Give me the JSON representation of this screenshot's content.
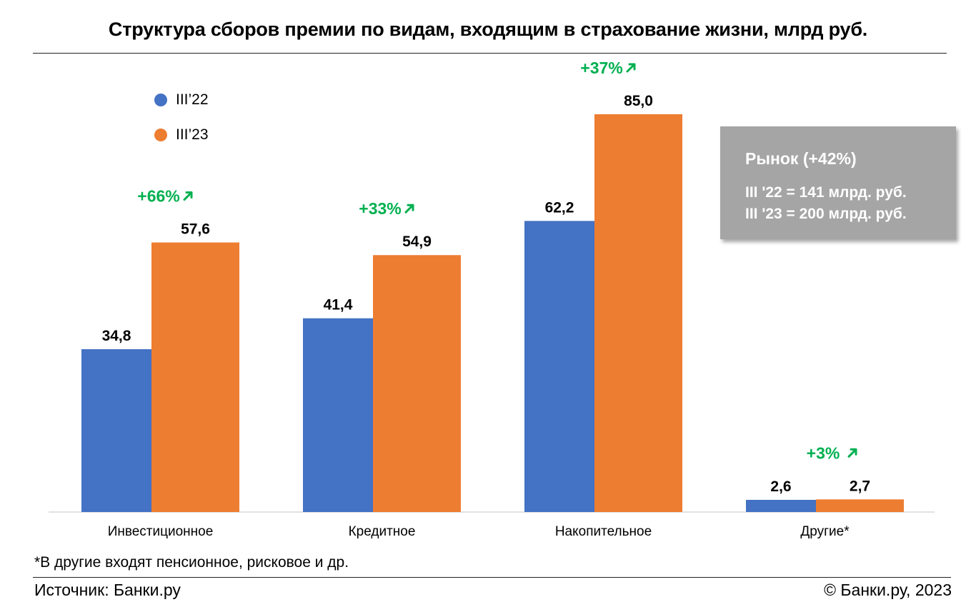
{
  "title": "Структура сборов премии по видам, входящим в страхование жизни, млрд руб.",
  "legend": [
    {
      "label": "III’22",
      "color": "#4472c4"
    },
    {
      "label": "III’23",
      "color": "#ed7d31"
    }
  ],
  "market": {
    "title": "Рынок (+42%)",
    "line1": "III '22 = 141 млрд. руб.",
    "line2": "III '23 = 200 млрд. руб."
  },
  "footnote": "*В другие входят пенсионное, рисковое и др.",
  "source": "Источник: Банки.ру",
  "copyright": "© Банки.ру, 2023",
  "growth_color": "#00b050",
  "chart_data": {
    "type": "bar",
    "categories": [
      "Инвестиционное",
      "Кредитное",
      "Накопительное",
      "Другие*"
    ],
    "series": [
      {
        "name": "III’22",
        "values": [
          34.8,
          41.4,
          62.2,
          2.6
        ],
        "labels": [
          "34,8",
          "41,4",
          "62,2",
          "2,6"
        ],
        "color": "#4472c4"
      },
      {
        "name": "III’23",
        "values": [
          57.6,
          54.9,
          85.0,
          2.7
        ],
        "labels": [
          "57,6",
          "54,9",
          "85,0",
          "2,7"
        ],
        "color": "#ed7d31"
      }
    ],
    "growth_labels": [
      "+66%",
      "+33%",
      "+37%",
      "+3%"
    ],
    "ylim": [
      0,
      85
    ],
    "grid": false,
    "legend_position": "top-left"
  }
}
